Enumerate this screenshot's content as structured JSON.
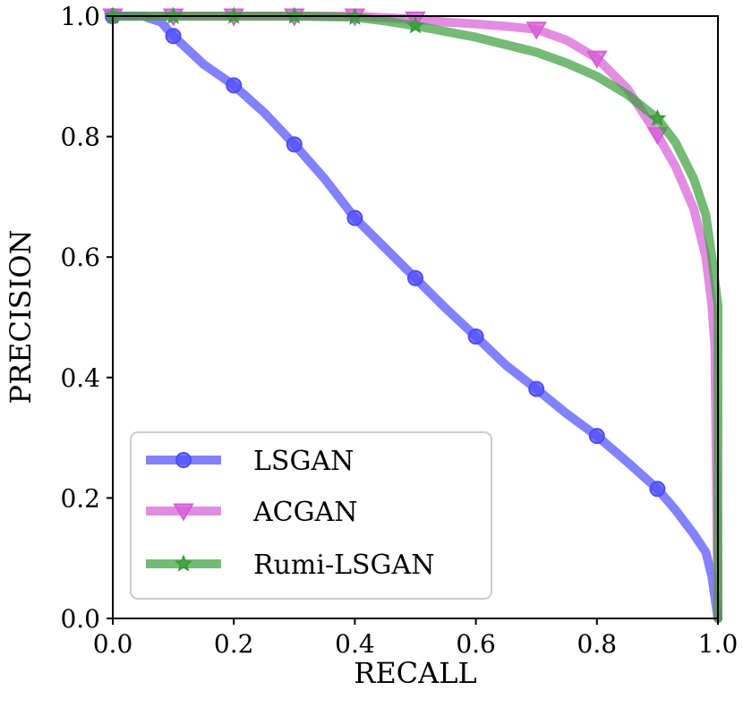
{
  "chart_data": {
    "type": "line",
    "title": "",
    "xlabel": "RECALL",
    "ylabel": "PRECISION",
    "xlim": [
      0.0,
      1.0
    ],
    "ylim": [
      0.0,
      1.0
    ],
    "xticks": [
      "0.0",
      "0.2",
      "0.4",
      "0.6",
      "0.8",
      "1.0"
    ],
    "yticks": [
      "0.0",
      "0.2",
      "0.4",
      "0.6",
      "0.8",
      "1.0"
    ],
    "grid": false,
    "legend_position": "lower-left",
    "series": [
      {
        "name": "LSGAN",
        "color": "#4d4dff",
        "marker": "circle",
        "line_x": [
          0.0,
          0.02,
          0.05,
          0.08,
          0.1,
          0.15,
          0.2,
          0.25,
          0.3,
          0.35,
          0.4,
          0.45,
          0.5,
          0.55,
          0.6,
          0.65,
          0.7,
          0.75,
          0.8,
          0.85,
          0.9,
          0.93,
          0.96,
          0.98,
          0.99,
          1.0
        ],
        "line_y": [
          1.0,
          1.0,
          1.0,
          0.99,
          0.967,
          0.92,
          0.885,
          0.84,
          0.787,
          0.73,
          0.665,
          0.615,
          0.565,
          0.515,
          0.468,
          0.42,
          0.381,
          0.34,
          0.303,
          0.26,
          0.215,
          0.18,
          0.14,
          0.11,
          0.07,
          0.0
        ],
        "marker_x": [
          0.0,
          0.1,
          0.2,
          0.3,
          0.4,
          0.5,
          0.6,
          0.7,
          0.8,
          0.9
        ],
        "marker_y": [
          1.0,
          0.967,
          0.885,
          0.787,
          0.665,
          0.565,
          0.468,
          0.381,
          0.303,
          0.215
        ]
      },
      {
        "name": "ACGAN",
        "color": "#d65cd6",
        "marker": "triangle-down",
        "line_x": [
          0.0,
          0.1,
          0.2,
          0.3,
          0.4,
          0.5,
          0.55,
          0.6,
          0.65,
          0.7,
          0.75,
          0.8,
          0.85,
          0.9,
          0.93,
          0.96,
          0.98,
          0.99,
          0.995,
          1.0
        ],
        "line_y": [
          1.0,
          1.0,
          1.0,
          1.0,
          1.0,
          0.995,
          0.99,
          0.987,
          0.983,
          0.978,
          0.96,
          0.93,
          0.88,
          0.803,
          0.75,
          0.68,
          0.6,
          0.52,
          0.45,
          0.0
        ],
        "marker_x": [
          0.0,
          0.1,
          0.2,
          0.3,
          0.4,
          0.5,
          0.7,
          0.8,
          0.9
        ],
        "marker_y": [
          1.0,
          1.0,
          1.0,
          1.0,
          1.0,
          0.995,
          0.978,
          0.93,
          0.803
        ]
      },
      {
        "name": "Rumi-LSGAN",
        "color": "#3a9d3a",
        "marker": "star",
        "line_x": [
          0.0,
          0.1,
          0.2,
          0.3,
          0.4,
          0.45,
          0.5,
          0.6,
          0.7,
          0.75,
          0.8,
          0.85,
          0.9,
          0.93,
          0.96,
          0.98,
          0.99,
          1.0,
          1.0
        ],
        "line_y": [
          1.0,
          1.0,
          1.0,
          1.0,
          0.998,
          0.992,
          0.984,
          0.965,
          0.94,
          0.922,
          0.9,
          0.87,
          0.83,
          0.79,
          0.73,
          0.67,
          0.6,
          0.52,
          0.0
        ],
        "marker_x": [
          0.0,
          0.1,
          0.2,
          0.3,
          0.4,
          0.5,
          0.9
        ],
        "marker_y": [
          1.0,
          1.0,
          1.0,
          1.0,
          0.998,
          0.984,
          0.83
        ]
      }
    ]
  }
}
